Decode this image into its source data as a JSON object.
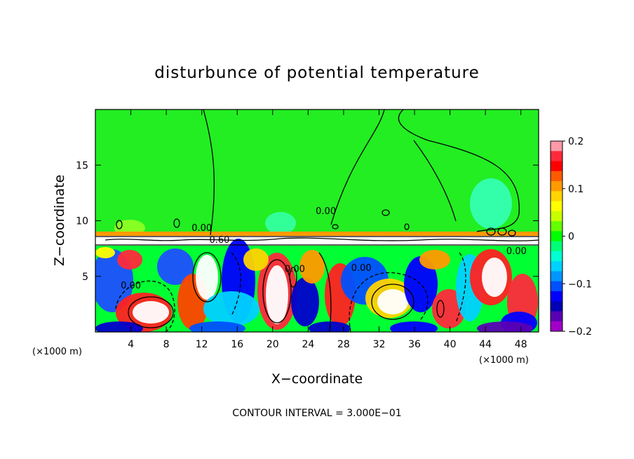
{
  "chart_data": {
    "type": "heatmap",
    "title": "disturbunce of potential temperature",
    "xlabel": "X−coordinate",
    "ylabel": "Z−coordinate",
    "x_unit_left": "(×1000 m)",
    "x_unit_right": "(×1000 m)",
    "note": "CONTOUR INTERVAL = 3.000E−01",
    "xlim": [
      0,
      50
    ],
    "ylim": [
      0,
      20
    ],
    "x_ticks": [
      4,
      8,
      12,
      16,
      20,
      24,
      28,
      32,
      36,
      40,
      44,
      48
    ],
    "x_tick_labels": [
      "4",
      "8",
      "12",
      "16",
      "20",
      "24",
      "28",
      "32",
      "36",
      "40",
      "44",
      "48"
    ],
    "y_ticks": [
      5,
      10,
      15
    ],
    "y_tick_labels": [
      "5",
      "10",
      "15"
    ],
    "colorbar": {
      "range": [
        -0.2,
        0.2
      ],
      "tick_values": [
        0.2,
        0.1,
        0,
        -0.1,
        -0.2
      ],
      "tick_labels": [
        "0.2",
        "0.1",
        "0",
        "−0.1",
        "−0.2"
      ],
      "colors": [
        "#ff9aa8",
        "#ff2a3c",
        "#ff0000",
        "#ff5a00",
        "#ff9a00",
        "#ffd400",
        "#ffff00",
        "#c8ff00",
        "#64ff00",
        "#00ff00",
        "#00ff78",
        "#00ffd2",
        "#00d2ff",
        "#0096ff",
        "#0050ff",
        "#0000ff",
        "#0000b4",
        "#5a00b4",
        "#a000c8"
      ]
    },
    "contour_labels": [
      {
        "text": "0.00",
        "x": 12,
        "y": 9.1
      },
      {
        "text": "0.00",
        "x": 26,
        "y": 10.6
      },
      {
        "text": "0.60",
        "x": 14,
        "y": 8.0
      },
      {
        "text": "0.00",
        "x": 4,
        "y": 3.9
      },
      {
        "text": "0.00",
        "x": 22.5,
        "y": 5.4
      },
      {
        "text": "0.00",
        "x": 30,
        "y": 5.5
      },
      {
        "text": "0.00",
        "x": 47.5,
        "y": 7.0
      }
    ]
  }
}
